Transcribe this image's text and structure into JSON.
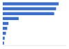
{
  "chart_data": {
    "type": "bar",
    "orientation": "horizontal",
    "categories": [
      null,
      null,
      null,
      null,
      null,
      null,
      null,
      null,
      null
    ],
    "values": [
      88,
      84,
      81,
      25,
      9,
      7,
      5,
      3,
      2
    ],
    "color": "#3a6fd0",
    "xlim": [
      0,
      100
    ],
    "tick_labels": false,
    "grid": false
  }
}
